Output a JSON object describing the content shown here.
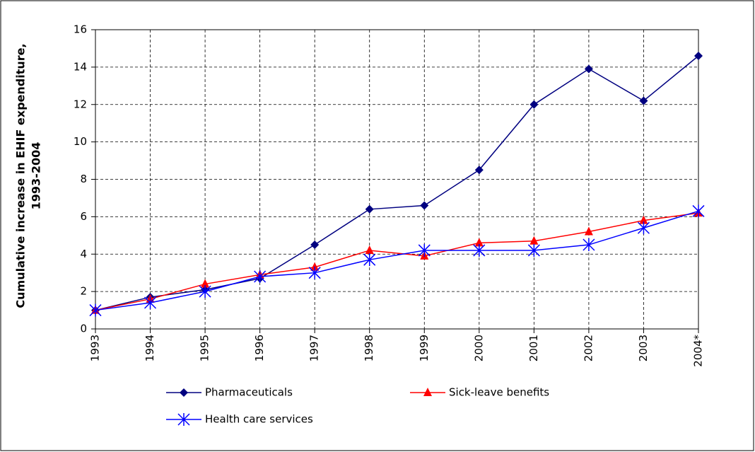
{
  "chart_data": {
    "type": "line",
    "y_label": [
      "Cumulative increase in EHIF expenditure,",
      "1993-2004"
    ],
    "categories": [
      "1993",
      "1994",
      "1995",
      "1996",
      "1997",
      "1998",
      "1999",
      "2000",
      "2001",
      "2002",
      "2003",
      "2004*"
    ],
    "series": [
      {
        "name": "Pharmaceuticals",
        "color": "#000080",
        "marker": "diamond",
        "values": [
          1.0,
          1.7,
          2.1,
          2.7,
          4.5,
          6.4,
          6.6,
          8.5,
          12.0,
          13.9,
          12.2,
          14.6
        ]
      },
      {
        "name": "Sick-leave benefits",
        "color": "#ff0000",
        "marker": "triangle",
        "values": [
          1.0,
          1.6,
          2.4,
          2.9,
          3.3,
          4.2,
          3.9,
          4.6,
          4.7,
          5.2,
          5.8,
          6.2
        ]
      },
      {
        "name": "Health care services",
        "color": "#0000ff",
        "marker": "asterisk",
        "values": [
          1.0,
          1.4,
          2.0,
          2.8,
          3.0,
          3.7,
          4.2,
          4.2,
          4.2,
          4.5,
          5.4,
          6.3
        ]
      }
    ],
    "ylim": [
      0,
      16
    ],
    "yticks": [
      0,
      2,
      4,
      6,
      8,
      10,
      12,
      14,
      16
    ],
    "grid": true
  }
}
